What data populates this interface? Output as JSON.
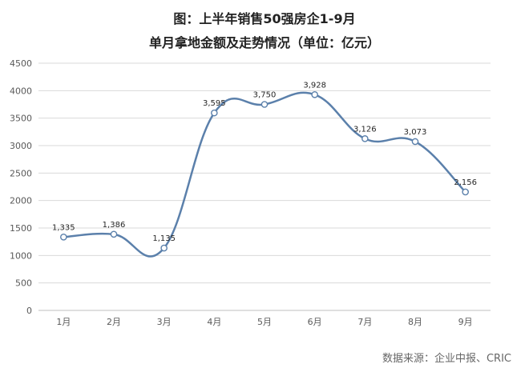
{
  "chart_data": {
    "type": "line",
    "title": "图：上半年销售50强房企1-9月",
    "subtitle": "单月拿地金额及走势情况（单位：亿元）",
    "categories": [
      "1月",
      "2月",
      "3月",
      "4月",
      "5月",
      "6月",
      "7月",
      "8月",
      "9月"
    ],
    "series": [
      {
        "values": [
          1335,
          1386,
          1135,
          3595,
          3750,
          3928,
          3126,
          3073,
          2156
        ],
        "labels": [
          "1,335",
          "1,386",
          "1,135",
          "3,595",
          "3,750",
          "3,928",
          "3,126",
          "3,073",
          "2,156"
        ]
      }
    ],
    "ylim": [
      0,
      4500
    ],
    "yticks": [
      0,
      500,
      1000,
      1500,
      2000,
      2500,
      3000,
      3500,
      4000,
      4500
    ],
    "grid": true,
    "line_color": "#5b80ab",
    "marker_fill": "#ffffff"
  },
  "source": "数据来源：企业中报、CRIC"
}
